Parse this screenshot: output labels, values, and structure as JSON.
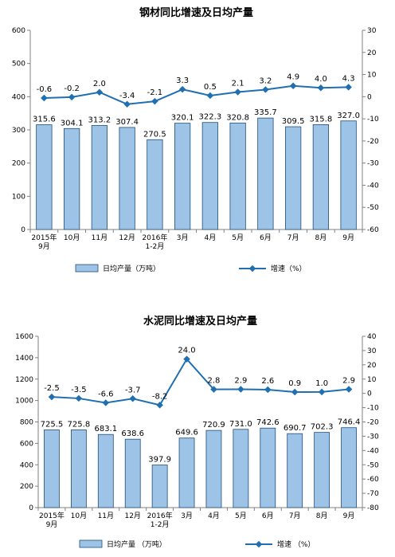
{
  "colors": {
    "bar_fill": "#9DC3E6",
    "bar_stroke": "#1F4E79",
    "line": "#1F6FB2",
    "axis": "#808080"
  },
  "chart_data": [
    {
      "type": "bar",
      "title": "钢材同比增速及日均产量",
      "categories": [
        [
          "2015年",
          "9月"
        ],
        [
          "10月"
        ],
        [
          "11月"
        ],
        [
          "12月"
        ],
        [
          "2016年",
          "1-2月"
        ],
        [
          "3月"
        ],
        [
          "4月"
        ],
        [
          "5月"
        ],
        [
          "6月"
        ],
        [
          "7月"
        ],
        [
          "8月"
        ],
        [
          "9月"
        ]
      ],
      "series": [
        {
          "name": "日均产量（万吨）",
          "type": "bar",
          "axis": "left",
          "values": [
            315.6,
            304.1,
            313.2,
            307.4,
            270.5,
            320.1,
            322.3,
            320.8,
            335.7,
            309.5,
            315.8,
            327.0
          ]
        },
        {
          "name": "增速（%）",
          "type": "line",
          "axis": "right",
          "values": [
            -0.6,
            -0.2,
            2.0,
            -3.4,
            -2.1,
            3.3,
            0.5,
            2.1,
            3.2,
            4.9,
            4.0,
            4.3
          ]
        }
      ],
      "left_axis": {
        "min": 0,
        "max": 600,
        "ticks": [
          0,
          100,
          200,
          300,
          400,
          500,
          600
        ]
      },
      "right_axis": {
        "min": -60,
        "max": 30,
        "ticks": [
          -60,
          -50,
          -40,
          -30,
          -20,
          -10,
          0,
          10,
          20,
          30
        ]
      },
      "bar_labels": [
        "315.6",
        "304.1",
        "313.2",
        "307.4",
        "270.5",
        "320.1",
        "322.3",
        "320.8",
        "335.7",
        "309.5",
        "315.8",
        "327.0"
      ],
      "line_labels": [
        "-0.6",
        "-0.2",
        "2.0",
        "-3.4",
        "-2.1",
        "3.3",
        "0.5",
        "2.1",
        "3.2",
        "4.9",
        "4.0",
        "4.3"
      ],
      "legend": {
        "position": "bottom",
        "bar": "日均产量（万吨）",
        "line": "增速（%）"
      },
      "grid": false
    },
    {
      "type": "bar",
      "title": "水泥同比增速及日均产量",
      "categories": [
        [
          "2015年",
          "9月"
        ],
        [
          "10月"
        ],
        [
          "11月"
        ],
        [
          "12月"
        ],
        [
          "2016年",
          "1-2月"
        ],
        [
          "3月"
        ],
        [
          "4月"
        ],
        [
          "5月"
        ],
        [
          "6月"
        ],
        [
          "7月"
        ],
        [
          "8月"
        ],
        [
          "9月"
        ]
      ],
      "series": [
        {
          "name": "日均产量（万吨）",
          "type": "bar",
          "axis": "left",
          "values": [
            725.5,
            725.8,
            683.1,
            638.6,
            397.9,
            649.6,
            720.9,
            731.0,
            742.6,
            690.7,
            702.3,
            746.4
          ]
        },
        {
          "name": "增速（%）",
          "type": "line",
          "axis": "right",
          "values": [
            -2.5,
            -3.5,
            -6.6,
            -3.7,
            -8.2,
            24.0,
            2.8,
            2.9,
            2.6,
            0.9,
            1.0,
            2.9
          ]
        }
      ],
      "left_axis": {
        "min": 0,
        "max": 1600,
        "ticks": [
          0,
          200,
          400,
          600,
          800,
          1000,
          1200,
          1400,
          1600
        ]
      },
      "right_axis": {
        "min": -80,
        "max": 40,
        "ticks": [
          -80,
          -70,
          -60,
          -50,
          -40,
          -30,
          -20,
          -10,
          0,
          10,
          20,
          30,
          40
        ]
      },
      "bar_labels": [
        "725.5",
        "725.8",
        "683.1",
        "638.6",
        "397.9",
        "649.6",
        "720.9",
        "731.0",
        "742.6",
        "690.7",
        "702.3",
        "746.4"
      ],
      "line_labels": [
        "-2.5",
        "-3.5",
        "-6.6",
        "-3.7",
        "-8.2",
        "24.0",
        "2.8",
        "2.9",
        "2.6",
        "0.9",
        "1.0",
        "2.9"
      ],
      "legend": {
        "position": "bottom",
        "bar": "日均产量 （万吨）",
        "line": "增速 （%）"
      },
      "grid": false
    }
  ]
}
